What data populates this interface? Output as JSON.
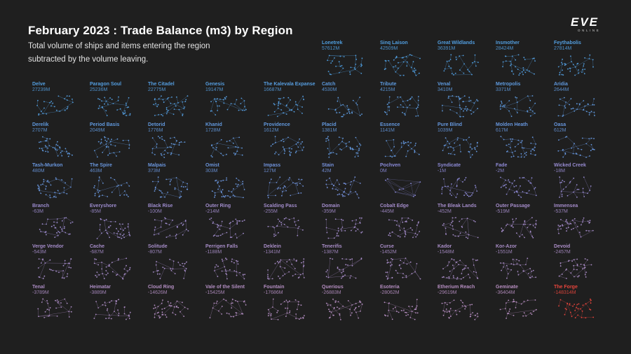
{
  "header": {
    "title": "February 2023 : Trade Balance (m3) by Region",
    "subtitle": "Total volume of ships and items entering the region subtracted by the volume leaving.",
    "logo_text": "EVE",
    "logo_subtext": "ONLINE"
  },
  "colors": {
    "background": "#1f1f1f",
    "positive": "#4f9fe0",
    "neutral": "#8a8ad8",
    "negative": "#b78ec0",
    "lowest": "#e8453c"
  },
  "chart_data": {
    "type": "table",
    "title": "February 2023 : Trade Balance (m3) by Region",
    "subtitle": "Total volume of ships and items entering the region subtracted by the volume leaving.",
    "unit": "M m3",
    "regions": [
      {
        "name": "Lonetrek",
        "label": "57612M",
        "value": 57612
      },
      {
        "name": "Sinq Laison",
        "label": "42509M",
        "value": 42509
      },
      {
        "name": "Great Wildlands",
        "label": "36391M",
        "value": 36391
      },
      {
        "name": "Insmother",
        "label": "28424M",
        "value": 28424
      },
      {
        "name": "Feythabolis",
        "label": "27814M",
        "value": 27814
      },
      {
        "name": "Delve",
        "label": "27239M",
        "value": 27239
      },
      {
        "name": "Paragon Soul",
        "label": "25236M",
        "value": 25236
      },
      {
        "name": "The Citadel",
        "label": "22775M",
        "value": 22775
      },
      {
        "name": "Genesis",
        "label": "19147M",
        "value": 19147
      },
      {
        "name": "The Kalevala Expanse",
        "label": "16687M",
        "value": 16687
      },
      {
        "name": "Catch",
        "label": "4530M",
        "value": 4530
      },
      {
        "name": "Tribute",
        "label": "4215M",
        "value": 4215
      },
      {
        "name": "Venal",
        "label": "3410M",
        "value": 3410
      },
      {
        "name": "Metropolis",
        "label": "3371M",
        "value": 3371
      },
      {
        "name": "Aridia",
        "label": "2644M",
        "value": 2644
      },
      {
        "name": "Derelik",
        "label": "2707M",
        "value": 2707
      },
      {
        "name": "Period Basis",
        "label": "2049M",
        "value": 2049
      },
      {
        "name": "Detorid",
        "label": "1776M",
        "value": 1776
      },
      {
        "name": "Khanid",
        "label": "1728M",
        "value": 1728
      },
      {
        "name": "Providence",
        "label": "1612M",
        "value": 1612
      },
      {
        "name": "Placid",
        "label": "1381M",
        "value": 1381
      },
      {
        "name": "Essence",
        "label": "1141M",
        "value": 1141
      },
      {
        "name": "Pure Blind",
        "label": "1039M",
        "value": 1039
      },
      {
        "name": "Molden Heath",
        "label": "617M",
        "value": 617
      },
      {
        "name": "Oasa",
        "label": "612M",
        "value": 612
      },
      {
        "name": "Tash-Murkon",
        "label": "480M",
        "value": 480
      },
      {
        "name": "The Spire",
        "label": "463M",
        "value": 463
      },
      {
        "name": "Malpais",
        "label": "373M",
        "value": 373
      },
      {
        "name": "Omist",
        "label": "303M",
        "value": 303
      },
      {
        "name": "Impass",
        "label": "127M",
        "value": 127
      },
      {
        "name": "Stain",
        "label": "42M",
        "value": 42
      },
      {
        "name": "Pochven",
        "label": "0M",
        "value": 0
      },
      {
        "name": "Syndicate",
        "label": "-1M",
        "value": -1
      },
      {
        "name": "Fade",
        "label": "-2M",
        "value": -2
      },
      {
        "name": "Wicked Creek",
        "label": "-18M",
        "value": -18
      },
      {
        "name": "Branch",
        "label": "-63M",
        "value": -63
      },
      {
        "name": "Everyshore",
        "label": "-85M",
        "value": -85
      },
      {
        "name": "Black Rise",
        "label": "-100M",
        "value": -100
      },
      {
        "name": "Outer Ring",
        "label": "-214M",
        "value": -214
      },
      {
        "name": "Scalding Pass",
        "label": "-255M",
        "value": -255
      },
      {
        "name": "Domain",
        "label": "-359M",
        "value": -359
      },
      {
        "name": "Cobalt Edge",
        "label": "-445M",
        "value": -445
      },
      {
        "name": "The Bleak Lands",
        "label": "-452M",
        "value": -452
      },
      {
        "name": "Outer Passage",
        "label": "-519M",
        "value": -519
      },
      {
        "name": "Immensea",
        "label": "-537M",
        "value": -537
      },
      {
        "name": "Verge Vendor",
        "label": "-543M",
        "value": -543
      },
      {
        "name": "Cache",
        "label": "-687M",
        "value": -687
      },
      {
        "name": "Solitude",
        "label": "-807M",
        "value": -807
      },
      {
        "name": "Perrigen Falls",
        "label": "-1188M",
        "value": -1188
      },
      {
        "name": "Deklein",
        "label": "-1341M",
        "value": -1341
      },
      {
        "name": "Tenerifis",
        "label": "-1387M",
        "value": -1387
      },
      {
        "name": "Curse",
        "label": "-1452M",
        "value": -1452
      },
      {
        "name": "Kador",
        "label": "-1548M",
        "value": -1548
      },
      {
        "name": "Kor-Azor",
        "label": "-1551M",
        "value": -1551
      },
      {
        "name": "Devoid",
        "label": "-2457M",
        "value": -2457
      },
      {
        "name": "Tenal",
        "label": "-3789M",
        "value": -3789
      },
      {
        "name": "Heimatar",
        "label": "-3889M",
        "value": -3889
      },
      {
        "name": "Cloud Ring",
        "label": "-14626M",
        "value": -14626
      },
      {
        "name": "Vale of the Silent",
        "label": "-15425M",
        "value": -15425
      },
      {
        "name": "Fountain",
        "label": "-17686M",
        "value": -17686
      },
      {
        "name": "Querious",
        "label": "-26883M",
        "value": -26883
      },
      {
        "name": "Esoteria",
        "label": "-28062M",
        "value": -28062
      },
      {
        "name": "Etherium Reach",
        "label": "-29619M",
        "value": -29619
      },
      {
        "name": "Geminate",
        "label": "-36404M",
        "value": -36404
      },
      {
        "name": "The Forge",
        "label": "-148314M",
        "value": -148314
      }
    ]
  }
}
